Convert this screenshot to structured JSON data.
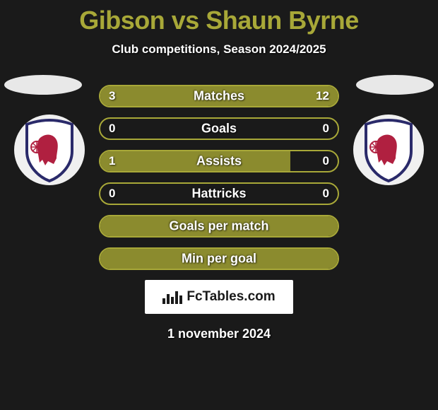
{
  "title": "Gibson vs Shaun Byrne",
  "title_color": "#a8a838",
  "subtitle": "Club competitions, Season 2024/2025",
  "accent_color": "#a8a838",
  "accent_fill": "#8b8b2e",
  "bar_border_color": "#a8a838",
  "background_color": "#1a1a1a",
  "bars": [
    {
      "label": "Matches",
      "left": "3",
      "right": "12",
      "left_pct": 20,
      "right_pct": 80
    },
    {
      "label": "Goals",
      "left": "0",
      "right": "0",
      "left_pct": 0,
      "right_pct": 0
    },
    {
      "label": "Assists",
      "left": "1",
      "right": "0",
      "left_pct": 80,
      "right_pct": 0
    },
    {
      "label": "Hattricks",
      "left": "0",
      "right": "0",
      "left_pct": 0,
      "right_pct": 0
    },
    {
      "label": "Goals per match",
      "left": "",
      "right": "",
      "left_pct": 100,
      "right_pct": 0
    },
    {
      "label": "Min per goal",
      "left": "",
      "right": "",
      "left_pct": 100,
      "right_pct": 0
    }
  ],
  "footer_brand": "FcTables.com",
  "date": "1 november 2024",
  "badge": {
    "shield_fill": "#ffffff",
    "shield_stroke": "#2a2a6a",
    "lion_color": "#b02040"
  }
}
